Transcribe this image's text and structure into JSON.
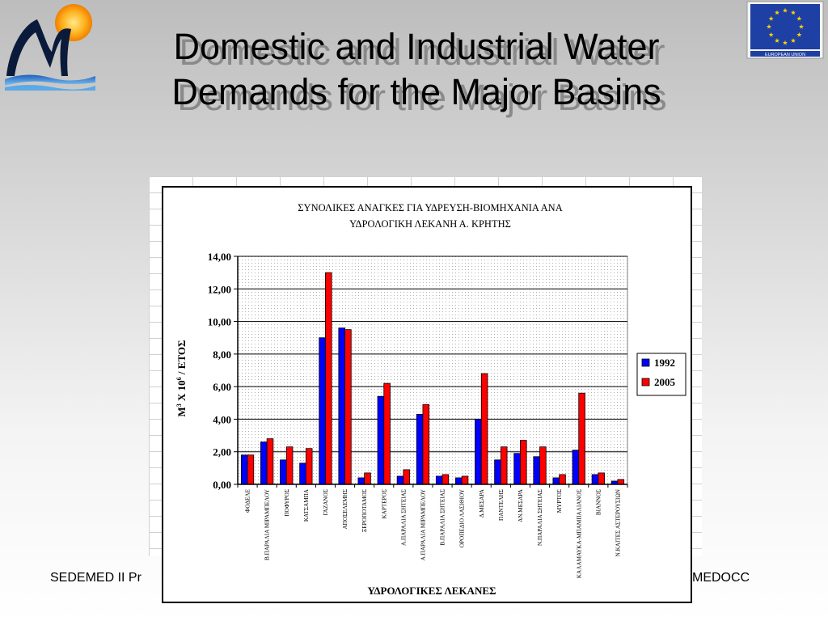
{
  "slide": {
    "title_line1": "Domestic and Industrial Water",
    "title_line2": "Demands for the Major Basins",
    "footer_left": "SEDEMED II Pr",
    "footer_right": "MEDOCC",
    "eu_flag_caption": "EUROPEAN UNION"
  },
  "colors": {
    "series_1992": "#0000ff",
    "series_2005": "#ff0000",
    "plot_dots": "#b0b0b0"
  },
  "chart_data": {
    "type": "bar",
    "title_line1": "ΣΥΝΟΛΙΚΕΣ ΑΝΑΓΚΕΣ ΓΙΑ ΥΔΡΕΥΣΗ-ΒΙΟΜΗΧΑΝΙΑ ΑΝΑ",
    "title_line2": "ΥΔΡΟΛΟΓΙΚΗ ΛΕΚΑΝΗ Α. ΚΡΗΤΗΣ",
    "ylabel": "M3 X 10 6 / ΕΤΟΣ",
    "ylabel_m": "M",
    "ylabel_sup1": "3",
    "ylabel_mid": " X 10",
    "ylabel_sup2": "6",
    "ylabel_end": " / ΕΤΟΣ",
    "xlabel": "ΥΔΡΟΛΟΓΙΚΕΣ ΛΕΚΑΝΕΣ",
    "ylim": [
      0,
      14
    ],
    "yticks": [
      "0,00",
      "2,00",
      "4,00",
      "6,00",
      "8,00",
      "10,00",
      "12,00",
      "14,00"
    ],
    "grid": true,
    "legend_position": "right",
    "categories": [
      "ΦΟΔΕΛΕ",
      "Β.ΠΑΡΑΛΙΑ ΜΙΡΑΜΠΕΛΟΥ",
      "ΠΟΦΥΡΟΣ",
      "ΚΑΤΣΑΜΠΑ",
      "ΓΑΖΑΝΟΣ",
      "ΑΠΟΣΕΛΕΜΗΣ",
      "ΞΕΡΟΠΟΤΑΜΟΣ",
      "ΚΑΡΤΕΡΟΣ",
      "Α.ΠΑΡΑΛΙΑ ΣΗΤΕΙΑΣ",
      "Α.ΠΑΡΑΛΙΑ ΜΙΡΑΜΠΕΛΟΥ",
      "Β.ΠΑΡΑΛΙΑ ΣΗΤΕΙΑΣ",
      "ΟΡΟΠΕΔΙΟ ΛΑΣΙΘΙΟΥ",
      "Δ.ΜΕΣΑΡΑ",
      "ΠΑΝΤΕΛΗΣ",
      "ΑΝ.ΜΕΣΑΡΑ",
      "Ν.ΠΑΡΑΛΙΑ ΣΗΤΕΙΑΣ",
      "ΜΥΡΤΟΣ",
      "ΚΑΛΑΜΑΥΚΑ-ΜΠΑΜΠΑΛΙΑΝΟΣ",
      "ΒΙΑΝΝΟΣ",
      "Ν.ΚΑΙΤΕΣ ΑΣΤΕΡΟΥΣΙΩΝ"
    ],
    "series": [
      {
        "name": "1992",
        "values": [
          1.8,
          2.6,
          1.5,
          1.3,
          9.0,
          9.6,
          0.4,
          5.4,
          0.5,
          4.3,
          0.5,
          0.4,
          4.0,
          1.5,
          1.9,
          1.7,
          0.4,
          2.1,
          0.6,
          0.2
        ]
      },
      {
        "name": "2005",
        "values": [
          1.8,
          2.8,
          2.3,
          2.2,
          13.0,
          9.5,
          0.7,
          6.2,
          0.9,
          4.9,
          0.6,
          0.5,
          6.8,
          2.3,
          2.7,
          2.3,
          0.6,
          5.6,
          0.7,
          0.3
        ]
      }
    ]
  }
}
